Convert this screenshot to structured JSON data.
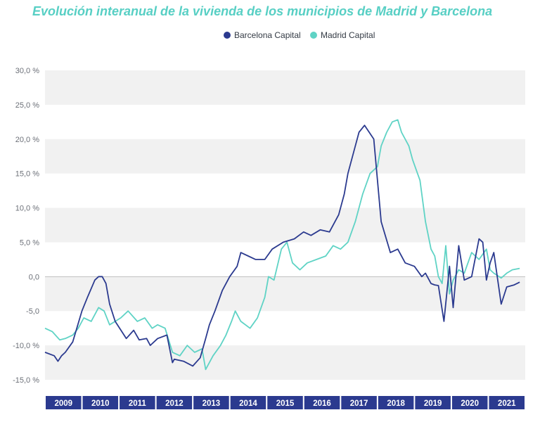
{
  "chart_data": {
    "type": "line",
    "title": "Evolución interanual de la vivienda de los municipios de Madrid y Barcelona",
    "xlabel": "",
    "ylabel": "",
    "ylim": [
      -15,
      30
    ],
    "xlim": [
      2009,
      2022
    ],
    "grid": "alternating horizontal bands",
    "legend_position": "top-center",
    "yticks": [
      "30,0 %",
      "25,0 %",
      "20,0 %",
      "15,0 %",
      "10,0 %",
      "5,0 %",
      "0,0",
      "-5,0",
      "-10,0 %",
      "-15,0 %"
    ],
    "ytick_values": [
      30,
      25,
      20,
      15,
      10,
      5,
      0,
      -5,
      -10,
      -15
    ],
    "xticks": [
      "2009",
      "2010",
      "2011",
      "2012",
      "2013",
      "2014",
      "2015",
      "2016",
      "2017",
      "2018",
      "2019",
      "2020",
      "2021"
    ],
    "colors": {
      "barcelona": "#2b3a8f",
      "madrid": "#5fd3c5",
      "band": "#f1f1f1",
      "axis_bar": "#2b3a8f"
    },
    "series": [
      {
        "name": "Barcelona Capital",
        "color": "#2b3a8f",
        "x": [
          2009.0,
          2009.25,
          2009.35,
          2009.45,
          2009.55,
          2009.75,
          2010.0,
          2010.15,
          2010.35,
          2010.45,
          2010.55,
          2010.65,
          2010.75,
          2010.9,
          2011.2,
          2011.4,
          2011.55,
          2011.75,
          2011.85,
          2012.05,
          2012.3,
          2012.45,
          2012.5,
          2012.75,
          2013.0,
          2013.2,
          2013.35,
          2013.45,
          2013.6,
          2013.8,
          2014.0,
          2014.2,
          2014.3,
          2014.5,
          2014.7,
          2014.95,
          2015.15,
          2015.45,
          2015.75,
          2016.0,
          2016.2,
          2016.45,
          2016.7,
          2016.95,
          2017.1,
          2017.2,
          2017.35,
          2017.5,
          2017.65,
          2017.9,
          2018.1,
          2018.35,
          2018.55,
          2018.75,
          2019.0,
          2019.2,
          2019.3,
          2019.45,
          2019.55,
          2019.65,
          2019.8,
          2019.95,
          2020.05,
          2020.2,
          2020.35,
          2020.55,
          2020.75,
          2020.85,
          2020.95,
          2021.05,
          2021.15,
          2021.35,
          2021.5,
          2021.7,
          2021.85
        ],
        "y": [
          -11.0,
          -11.5,
          -12.3,
          -11.5,
          -11.0,
          -9.5,
          -5.0,
          -3.0,
          -0.5,
          0.0,
          0.0,
          -1.0,
          -4.0,
          -6.5,
          -9.0,
          -7.8,
          -9.2,
          -9.0,
          -10.0,
          -9.0,
          -8.5,
          -12.5,
          -12.0,
          -12.3,
          -13.0,
          -11.8,
          -9.0,
          -7.0,
          -5.0,
          -2.0,
          0.0,
          1.5,
          3.5,
          3.0,
          2.5,
          2.5,
          4.0,
          5.0,
          5.5,
          6.5,
          6.0,
          6.8,
          6.5,
          9.0,
          12.0,
          15.0,
          18.0,
          21.0,
          22.0,
          20.0,
          8.0,
          3.5,
          4.0,
          2.0,
          1.5,
          0.0,
          0.5,
          -1.0,
          -1.2,
          -1.3,
          -6.5,
          1.5,
          -4.5,
          4.5,
          -0.5,
          0.0,
          5.5,
          5.0,
          -0.5,
          2.0,
          3.5,
          -4.0,
          -1.5,
          -1.2,
          -0.8
        ]
      },
      {
        "name": "Madrid Capital",
        "color": "#5fd3c5",
        "x": [
          2009.0,
          2009.2,
          2009.4,
          2009.55,
          2009.75,
          2009.9,
          2010.05,
          2010.25,
          2010.45,
          2010.6,
          2010.75,
          2010.9,
          2011.05,
          2011.25,
          2011.5,
          2011.7,
          2011.9,
          2012.05,
          2012.25,
          2012.45,
          2012.65,
          2012.85,
          2013.05,
          2013.25,
          2013.35,
          2013.55,
          2013.75,
          2013.9,
          2014.05,
          2014.15,
          2014.3,
          2014.55,
          2014.75,
          2014.95,
          2015.05,
          2015.2,
          2015.4,
          2015.55,
          2015.7,
          2015.9,
          2016.1,
          2016.35,
          2016.6,
          2016.8,
          2017.0,
          2017.2,
          2017.4,
          2017.6,
          2017.8,
          2018.0,
          2018.1,
          2018.25,
          2018.4,
          2018.55,
          2018.65,
          2018.85,
          2018.95,
          2019.15,
          2019.3,
          2019.45,
          2019.55,
          2019.65,
          2019.75,
          2019.85,
          2019.95,
          2020.05,
          2020.2,
          2020.35,
          2020.55,
          2020.75,
          2020.95,
          2021.05,
          2021.15,
          2021.35,
          2021.5,
          2021.65,
          2021.85
        ],
        "y": [
          -7.5,
          -8.0,
          -9.2,
          -9.0,
          -8.5,
          -7.5,
          -6.0,
          -6.5,
          -4.5,
          -5.0,
          -7.0,
          -6.5,
          -6.0,
          -5.0,
          -6.5,
          -6.0,
          -7.5,
          -7.0,
          -7.5,
          -11.0,
          -11.5,
          -10.0,
          -11.0,
          -10.5,
          -13.5,
          -11.5,
          -10.0,
          -8.5,
          -6.5,
          -5.0,
          -6.5,
          -7.5,
          -6.0,
          -3.0,
          0.0,
          -0.5,
          4.0,
          5.0,
          2.0,
          1.0,
          2.0,
          2.5,
          3.0,
          4.5,
          4.0,
          5.0,
          8.0,
          12.0,
          15.0,
          16.0,
          19.0,
          21.0,
          22.5,
          22.8,
          21.0,
          19.0,
          17.0,
          14.0,
          8.0,
          4.0,
          3.0,
          0.0,
          -1.0,
          4.5,
          -2.5,
          -0.5,
          1.0,
          0.5,
          3.5,
          2.5,
          4.0,
          1.0,
          0.5,
          -0.2,
          0.5,
          1.0,
          1.2
        ]
      }
    ]
  }
}
